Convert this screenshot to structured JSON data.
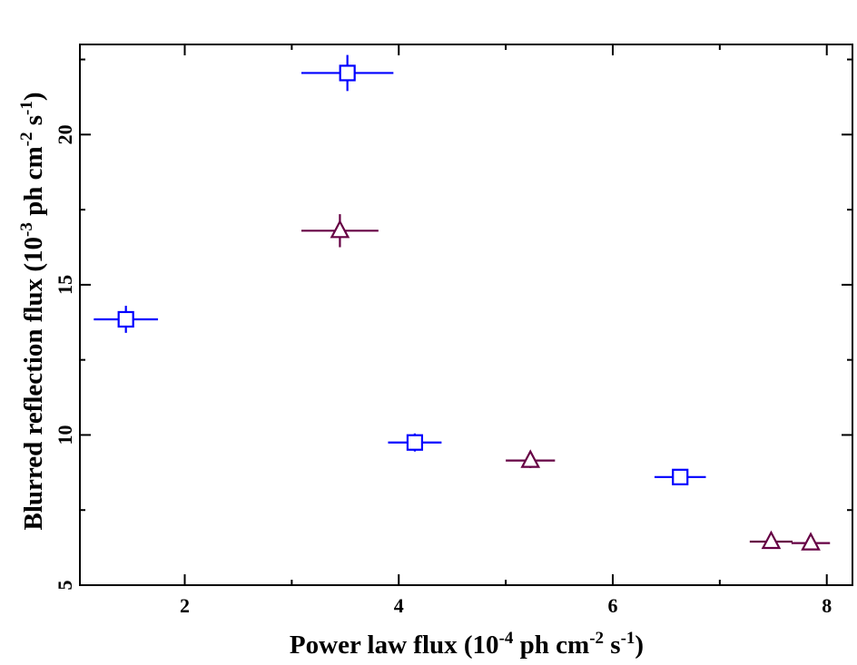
{
  "chart_data": {
    "type": "scatter",
    "xlabel": {
      "pre": "Power law flux (10",
      "exp1": "-4",
      "mid1": " ph cm",
      "exp2": "-2",
      "mid2": " s",
      "exp3": "-1",
      "post": ")"
    },
    "ylabel": {
      "pre": "Blurred reflection flux (10",
      "exp1": "-3",
      "mid1": " ph cm",
      "exp2": "-2",
      "mid2": " s",
      "exp3": "-1",
      "post": ")"
    },
    "xlim": [
      1.02,
      8.24
    ],
    "ylim": [
      5,
      23.0
    ],
    "xticks": [
      2,
      4,
      6,
      8
    ],
    "xtick_labels": [
      "2",
      "4",
      "6",
      "8"
    ],
    "yticks": [
      5,
      10,
      15,
      20
    ],
    "ytick_labels": [
      "5",
      "10",
      "15",
      "20"
    ],
    "grid": false,
    "series": [
      {
        "marker": "square",
        "color": "#0000ff",
        "points": [
          {
            "x": 1.45,
            "y": 13.85,
            "xerr": 0.3,
            "yerr": 0.45
          },
          {
            "x": 3.52,
            "y": 22.05,
            "xerr": 0.43,
            "yerr": 0.6
          },
          {
            "x": 4.15,
            "y": 9.75,
            "xerr": 0.25,
            "yerr": 0.3
          },
          {
            "x": 6.63,
            "y": 8.6,
            "xerr": 0.24,
            "yerr": 0.25
          }
        ]
      },
      {
        "marker": "triangle",
        "color": "#660044",
        "points": [
          {
            "x": 3.45,
            "y": 16.8,
            "xerr": 0.36,
            "yerr": 0.55
          },
          {
            "x": 5.23,
            "y": 9.15,
            "xerr": 0.23,
            "yerr": 0.25
          },
          {
            "x": 7.48,
            "y": 6.45,
            "xerr": 0.2,
            "yerr": 0.15
          },
          {
            "x": 7.85,
            "y": 6.4,
            "xerr": 0.18,
            "yerr": 0.15
          }
        ]
      }
    ]
  }
}
